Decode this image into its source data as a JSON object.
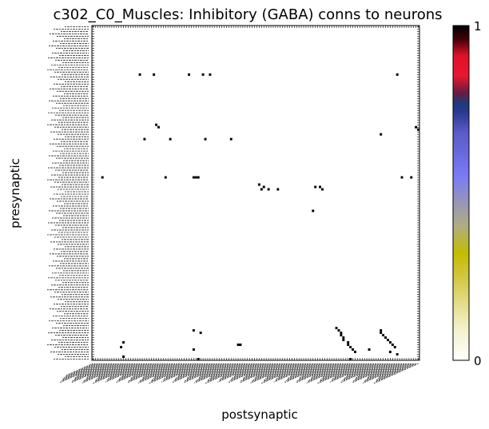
{
  "chart_data": {
    "type": "heatmap",
    "title": "c302_C0_Muscles: Inhibitory (GABA) conns to neurons",
    "xlabel": "postsynaptic",
    "ylabel": "presynaptic",
    "n_rows": 140,
    "n_cols": 140,
    "value_range": [
      0,
      1
    ],
    "colorbar_ticks": [
      "0",
      "1"
    ],
    "colorbar_colormap": "gist_stern_r",
    "cells": [
      [
        20,
        20
      ],
      [
        20,
        26
      ],
      [
        20,
        41
      ],
      [
        20,
        47
      ],
      [
        20,
        50
      ],
      [
        20,
        130
      ],
      [
        41,
        27
      ],
      [
        42,
        28
      ],
      [
        47,
        22
      ],
      [
        47,
        33
      ],
      [
        47,
        48
      ],
      [
        47,
        59
      ],
      [
        42,
        138
      ],
      [
        43,
        139
      ],
      [
        45,
        123
      ],
      [
        63,
        4
      ],
      [
        63,
        31
      ],
      [
        63,
        43
      ],
      [
        63,
        44
      ],
      [
        63,
        45
      ],
      [
        63,
        132
      ],
      [
        63,
        136
      ],
      [
        66,
        71
      ],
      [
        67,
        73
      ],
      [
        68,
        72
      ],
      [
        68,
        75
      ],
      [
        68,
        79
      ],
      [
        67,
        95
      ],
      [
        67,
        97
      ],
      [
        68,
        98
      ],
      [
        77,
        94
      ],
      [
        127,
        43
      ],
      [
        128,
        46
      ],
      [
        132,
        13
      ],
      [
        134,
        12
      ],
      [
        135,
        43
      ],
      [
        133,
        62
      ],
      [
        133,
        63
      ],
      [
        126,
        104
      ],
      [
        127,
        105
      ],
      [
        128,
        106
      ],
      [
        129,
        106
      ],
      [
        130,
        107
      ],
      [
        131,
        107
      ],
      [
        132,
        109
      ],
      [
        133,
        109
      ],
      [
        134,
        110
      ],
      [
        135,
        111
      ],
      [
        136,
        112
      ],
      [
        127,
        123
      ],
      [
        128,
        123
      ],
      [
        129,
        124
      ],
      [
        130,
        125
      ],
      [
        131,
        126
      ],
      [
        132,
        127
      ],
      [
        133,
        128
      ],
      [
        134,
        129
      ],
      [
        135,
        118
      ],
      [
        136,
        127
      ],
      [
        137,
        130
      ],
      [
        138,
        13
      ],
      [
        139,
        45
      ],
      [
        139,
        110
      ]
    ]
  }
}
